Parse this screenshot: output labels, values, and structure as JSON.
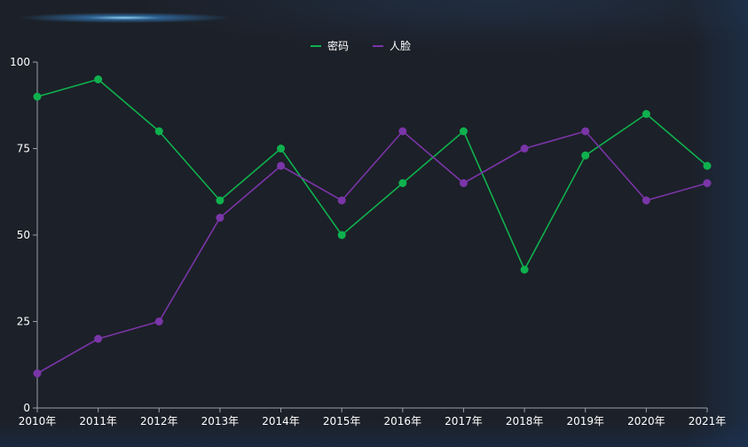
{
  "chart_data": {
    "type": "line",
    "categories": [
      "2010年",
      "2011年",
      "2012年",
      "2013年",
      "2014年",
      "2015年",
      "2016年",
      "2017年",
      "2018年",
      "2019年",
      "2020年",
      "2021年"
    ],
    "series": [
      {
        "name": "密码",
        "values": [
          90,
          95,
          80,
          60,
          75,
          50,
          65,
          80,
          40,
          73,
          85,
          70
        ],
        "color": "#0fb14e"
      },
      {
        "name": "人脸",
        "values": [
          10,
          20,
          25,
          55,
          70,
          60,
          80,
          65,
          75,
          80,
          60,
          65
        ],
        "color": "#7a35a8"
      }
    ],
    "ylim": [
      0,
      100
    ],
    "yticks": [
      0,
      25,
      50,
      75,
      100
    ],
    "grid": false,
    "legend_position": "top-center",
    "axis_color": "#9aa0a8",
    "text_color": "#ffffff"
  }
}
